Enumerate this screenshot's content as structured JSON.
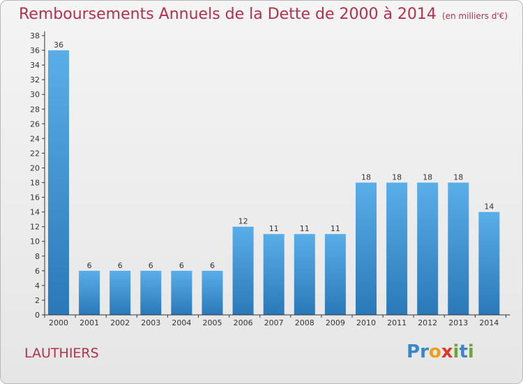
{
  "title": "Remboursements Annuels de la Dette de 2000 à 2014",
  "subtitle": "(en milliers d'€)",
  "commune": "LAUTHIERS",
  "logo": {
    "text": "Proxiti",
    "letters": [
      {
        "ch": "P",
        "color": "#3a87c8"
      },
      {
        "ch": "r",
        "color": "#3a87c8"
      },
      {
        "ch": "o",
        "color": "#e8a020"
      },
      {
        "ch": "x",
        "color": "#d83a2a"
      },
      {
        "ch": "i",
        "color": "#6aa832"
      },
      {
        "ch": "t",
        "color": "#3a87c8"
      },
      {
        "ch": "i",
        "color": "#6aa832"
      }
    ]
  },
  "colors": {
    "bar_light": "#5aaee8",
    "bar_dark": "#2a78b8",
    "text": "#b0324b",
    "axis": "#333333"
  },
  "chart_data": {
    "type": "bar",
    "categories": [
      "2000",
      "2001",
      "2002",
      "2003",
      "2004",
      "2005",
      "2006",
      "2007",
      "2008",
      "2009",
      "2010",
      "2011",
      "2012",
      "2013",
      "2014"
    ],
    "values": [
      36,
      6,
      6,
      6,
      6,
      6,
      12,
      11,
      11,
      11,
      18,
      18,
      18,
      18,
      14
    ],
    "ylim": [
      0,
      38
    ],
    "yticks": [
      0,
      2,
      4,
      6,
      8,
      10,
      12,
      14,
      16,
      18,
      20,
      22,
      24,
      26,
      28,
      30,
      32,
      34,
      36,
      38
    ],
    "grid": false,
    "data_labels": true
  }
}
